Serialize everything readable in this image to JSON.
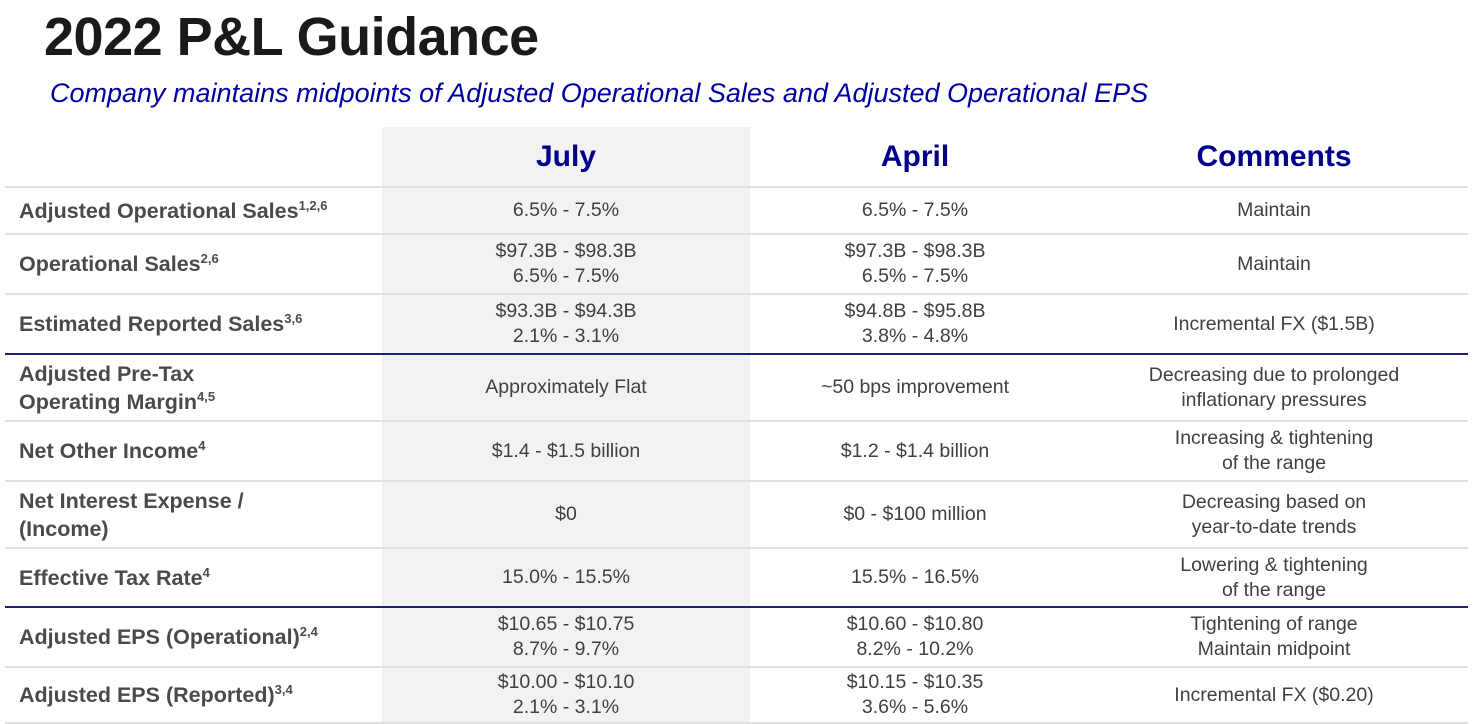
{
  "header": {
    "title": "2022 P&L Guidance",
    "subtitle": "Company maintains midpoints of Adjusted Operational Sales and Adjusted Operational EPS"
  },
  "table": {
    "columns": [
      "July",
      "April",
      "Comments"
    ],
    "rows": [
      {
        "label": [
          "Adjusted Operational Sales"
        ],
        "sup": "1,2,6",
        "cells": [
          [
            "6.5% - 7.5%"
          ],
          [
            "6.5% - 7.5%"
          ],
          [
            "Maintain"
          ]
        ]
      },
      {
        "label": [
          "Operational Sales"
        ],
        "sup": "2,6",
        "cells": [
          [
            "$97.3B - $98.3B",
            "6.5% - 7.5%"
          ],
          [
            "$97.3B - $98.3B",
            "6.5% - 7.5%"
          ],
          [
            "Maintain"
          ]
        ]
      },
      {
        "label": [
          "Estimated Reported Sales"
        ],
        "sup": "3,6",
        "cells": [
          [
            "$93.3B - $94.3B",
            "2.1% - 3.1%"
          ],
          [
            "$94.8B - $95.8B",
            "3.8% - 4.8%"
          ],
          [
            "Incremental FX ($1.5B)"
          ]
        ]
      },
      {
        "label": [
          "Adjusted Pre-Tax",
          "Operating Margin"
        ],
        "sup": "4,5",
        "cells": [
          [
            "Approximately Flat"
          ],
          [
            "~50 bps improvement"
          ],
          [
            "Decreasing due to prolonged",
            "inflationary pressures"
          ]
        ]
      },
      {
        "label": [
          "Net Other Income"
        ],
        "sup": "4",
        "cells": [
          [
            "$1.4 - $1.5 billion"
          ],
          [
            "$1.2 - $1.4 billion"
          ],
          [
            "Increasing & tightening",
            "of the range"
          ]
        ]
      },
      {
        "label": [
          "Net Interest Expense /",
          "(Income)"
        ],
        "sup": null,
        "cells": [
          [
            "$0"
          ],
          [
            "$0 - $100 million"
          ],
          [
            "Decreasing based on",
            "year-to-date trends"
          ]
        ]
      },
      {
        "label": [
          "Effective Tax Rate"
        ],
        "sup": "4",
        "cells": [
          [
            "15.0% - 15.5%"
          ],
          [
            "15.5% - 16.5%"
          ],
          [
            "Lowering & tightening",
            "of the range"
          ]
        ]
      },
      {
        "label": [
          "Adjusted EPS (Operational)"
        ],
        "sup": "2,4",
        "cells": [
          [
            "$10.65 - $10.75",
            "8.7% - 9.7%"
          ],
          [
            "$10.60 - $10.80",
            "8.2% - 10.2%"
          ],
          [
            "Tightening of range",
            "Maintain midpoint"
          ]
        ]
      },
      {
        "label": [
          "Adjusted EPS (Reported)"
        ],
        "sup": "3,4",
        "cells": [
          [
            "$10.00 - $10.10",
            "2.1% - 3.1%"
          ],
          [
            "$10.15 - $10.35",
            "3.6% - 5.6%"
          ],
          [
            "Incremental FX ($0.20)"
          ]
        ]
      }
    ]
  }
}
